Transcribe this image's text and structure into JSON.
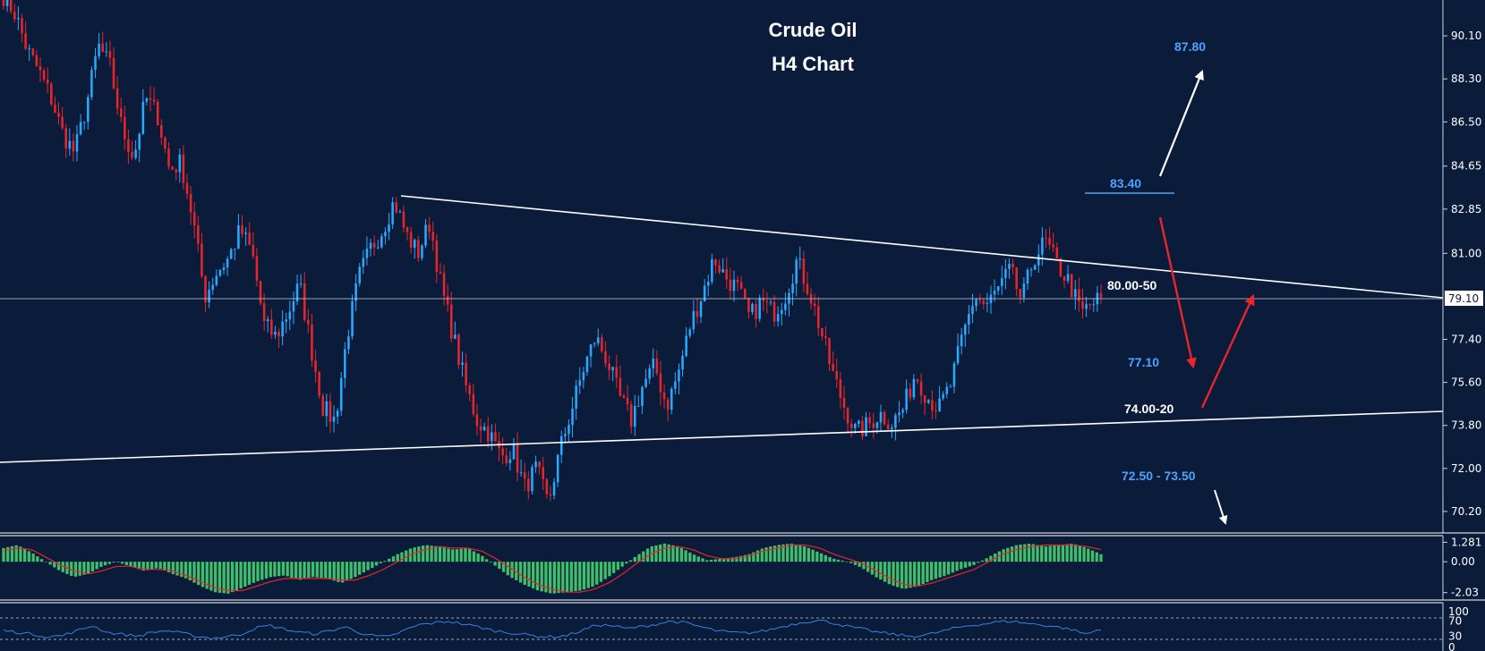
{
  "chart_data": [
    {
      "type": "candlestick",
      "title": "Crude Oil",
      "subtitle": "H4 Chart",
      "ylim": [
        69.3,
        91.6
      ],
      "yticks": [
        70.2,
        72.0,
        73.8,
        75.6,
        77.4,
        79.1,
        81.0,
        82.85,
        84.65,
        86.5,
        88.3,
        90.1
      ],
      "ytick_labels": [
        "70.20",
        "72.00",
        "73.80",
        "75.60",
        "77.40",
        "79.10",
        "81.00",
        "82.85",
        "84.65",
        "86.50",
        "88.30",
        "90.10"
      ],
      "current_price": 79.1,
      "current_price_label": "79.10",
      "close_path": [
        91.8,
        91.0,
        89.5,
        88.6,
        87.5,
        86.0,
        85.2,
        87.2,
        89.7,
        88.8,
        86.2,
        85.0,
        87.5,
        86.8,
        84.5,
        84.8,
        82.4,
        79.2,
        80.2,
        80.8,
        82.0,
        81.0,
        78.0,
        77.5,
        78.5,
        79.7,
        77.0,
        74.5,
        74.0,
        77.5,
        80.0,
        81.2,
        82.0,
        83.2,
        81.8,
        81.0,
        82.3,
        79.5,
        77.5,
        75.5,
        74.0,
        73.5,
        72.5,
        72.8,
        71.2,
        72.0,
        70.5,
        72.8,
        74.5,
        76.2,
        77.5,
        76.5,
        75.0,
        74.0,
        75.5,
        76.3,
        74.6,
        76.0,
        78.0,
        79.3,
        80.8,
        80.0,
        79.5,
        78.3,
        79.0,
        78.5,
        79.2,
        80.7,
        79.5,
        77.8,
        76.0,
        74.6,
        73.5,
        73.8,
        74.3,
        73.9,
        74.5,
        76.0,
        75.0,
        74.5,
        75.5,
        77.5,
        79.2,
        78.8,
        79.5,
        80.3,
        79.0,
        80.8,
        81.5,
        80.5,
        79.8,
        78.5,
        78.9,
        79.2
      ],
      "annotations": [
        {
          "text": "87.80",
          "value": 87.8,
          "color": "#4aa3ff"
        },
        {
          "text": "83.40",
          "value": 83.4,
          "color": "#4aa3ff"
        },
        {
          "text": "80.00-50",
          "value": 80.25,
          "color": "#ffffff"
        },
        {
          "text": "77.10",
          "value": 77.1,
          "color": "#4aa3ff"
        },
        {
          "text": "74.00-20",
          "value": 74.1,
          "color": "#ffffff"
        },
        {
          "text": "72.50 - 73.50",
          "value": 73.0,
          "color": "#4aa3ff"
        }
      ],
      "colors": {
        "bull": "#29a8ff",
        "bear": "#e8252b",
        "background": "#0b1c3a",
        "line": "#ffffff"
      }
    },
    {
      "type": "bar",
      "indicator": "MACD",
      "ylim": [
        -2.4,
        1.6
      ],
      "yticks": [
        1.281,
        0.0,
        -2.03
      ],
      "ytick_labels": [
        "1.281",
        "0.00",
        "-2.03"
      ],
      "hist_path": [
        0.9,
        1.1,
        0.6,
        0.0,
        -0.6,
        -1.0,
        -0.8,
        -0.3,
        0.0,
        -0.3,
        -0.6,
        -0.4,
        -0.8,
        -1.1,
        -1.6,
        -2.0,
        -2.1,
        -1.7,
        -1.3,
        -1.0,
        -0.9,
        -1.2,
        -1.0,
        -1.1,
        -1.4,
        -1.0,
        -0.5,
        0.0,
        0.5,
        0.9,
        1.1,
        1.0,
        0.8,
        0.9,
        0.4,
        -0.3,
        -1.0,
        -1.5,
        -1.9,
        -2.1,
        -2.0,
        -1.9,
        -1.6,
        -1.0,
        -0.3,
        0.4,
        1.0,
        1.2,
        1.0,
        0.5,
        0.1,
        0.2,
        0.3,
        0.5,
        0.9,
        1.1,
        1.2,
        1.0,
        0.6,
        0.2,
        0.0,
        -0.4,
        -1.0,
        -1.5,
        -1.8,
        -1.6,
        -1.2,
        -0.9,
        -0.5,
        -0.2,
        0.3,
        0.8,
        1.1,
        1.2,
        1.0,
        1.1,
        1.2,
        0.9,
        0.5
      ],
      "signal_path": [
        0.7,
        0.9,
        0.8,
        0.3,
        -0.2,
        -0.6,
        -0.8,
        -0.6,
        -0.3,
        -0.3,
        -0.5,
        -0.5,
        -0.6,
        -0.9,
        -1.3,
        -1.7,
        -1.9,
        -1.9,
        -1.6,
        -1.3,
        -1.1,
        -1.1,
        -1.1,
        -1.1,
        -1.2,
        -1.2,
        -0.9,
        -0.5,
        0.0,
        0.5,
        0.8,
        1.0,
        0.9,
        0.9,
        0.7,
        0.2,
        -0.4,
        -1.0,
        -1.5,
        -1.8,
        -2.0,
        -2.0,
        -1.8,
        -1.4,
        -0.8,
        -0.1,
        0.5,
        0.9,
        1.0,
        0.8,
        0.4,
        0.2,
        0.2,
        0.4,
        0.7,
        0.9,
        1.1,
        1.1,
        0.9,
        0.5,
        0.2,
        -0.1,
        -0.6,
        -1.1,
        -1.5,
        -1.6,
        -1.4,
        -1.1,
        -0.8,
        -0.5,
        0.0,
        0.5,
        0.8,
        1.0,
        1.1,
        1.1,
        1.1,
        1.0,
        0.8
      ],
      "colors": {
        "hist": "#3fbf6a",
        "signal": "#e8252b"
      }
    },
    {
      "type": "line",
      "indicator": "RSI",
      "ylim": [
        0,
        100
      ],
      "levels": [
        70,
        30
      ],
      "yticks": [
        100,
        70,
        30,
        0
      ],
      "ytick_labels": [
        "100",
        "70",
        "30",
        "0"
      ],
      "rsi_path": [
        45,
        40,
        35,
        28,
        32,
        45,
        58,
        40,
        35,
        30,
        40,
        45,
        38,
        30,
        25,
        28,
        35,
        52,
        58,
        48,
        40,
        36,
        44,
        55,
        40,
        30,
        28,
        45,
        60,
        65,
        70,
        62,
        55,
        45,
        40,
        35,
        30,
        28,
        32,
        45,
        60,
        58,
        50,
        55,
        62,
        70,
        65,
        55,
        45,
        40,
        38,
        42,
        50,
        60,
        68,
        72,
        65,
        55,
        48,
        40,
        35,
        30,
        32,
        40,
        50,
        58,
        62,
        68,
        70,
        64,
        60,
        55,
        48,
        35,
        50
      ],
      "colors": {
        "line": "#3b7fe0"
      }
    }
  ]
}
